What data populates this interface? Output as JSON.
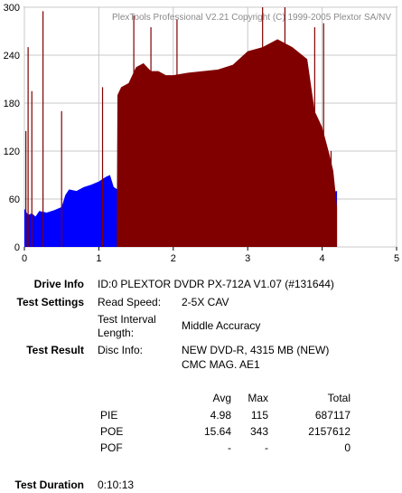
{
  "chart_data": {
    "type": "area",
    "watermark": "PlexTools Professional V2.21 Copyright (C) 1999-2005 Plextor SA/NV",
    "xlim": [
      0,
      5
    ],
    "ylim": [
      0,
      300
    ],
    "x_ticks": [
      "0",
      "1",
      "2",
      "3",
      "4",
      "5"
    ],
    "y_ticks": [
      "0",
      "60",
      "120",
      "180",
      "240",
      "300"
    ],
    "grid": true,
    "series": [
      {
        "color": "#0000ff",
        "x": [
          0.0,
          0.05,
          0.1,
          0.15,
          0.2,
          0.3,
          0.4,
          0.5,
          0.55,
          0.6,
          0.7,
          0.8,
          0.9,
          1.0,
          1.05,
          1.1,
          1.15,
          1.2,
          1.25,
          1.3,
          1.4,
          1.5,
          1.6,
          1.7,
          1.8,
          1.9,
          2.0,
          2.2,
          2.4,
          2.6,
          2.8,
          3.0,
          3.2,
          3.4,
          3.6,
          3.8,
          3.9,
          4.0,
          4.1,
          4.2
        ],
        "values": [
          48,
          40,
          42,
          38,
          45,
          43,
          46,
          50,
          65,
          72,
          70,
          75,
          78,
          82,
          85,
          88,
          90,
          75,
          72,
          75,
          70,
          67,
          60,
          55,
          50,
          47,
          45,
          42,
          40,
          39,
          38,
          37,
          39,
          42,
          46,
          50,
          56,
          62,
          68,
          70
        ]
      },
      {
        "color": "#800000",
        "x": [
          1.24,
          1.25,
          1.3,
          1.4,
          1.5,
          1.6,
          1.7,
          1.8,
          1.9,
          2.0,
          2.2,
          2.4,
          2.6,
          2.8,
          3.0,
          3.2,
          3.3,
          3.4,
          3.6,
          3.8,
          3.9,
          4.0,
          4.1,
          4.15,
          4.2
        ],
        "values": [
          0,
          190,
          200,
          205,
          225,
          230,
          220,
          220,
          215,
          215,
          218,
          220,
          222,
          228,
          245,
          250,
          255,
          260,
          250,
          235,
          170,
          150,
          115,
          95,
          50
        ]
      }
    ],
    "spikes": [
      {
        "x": 0.05,
        "value": 250
      },
      {
        "x": 0.1,
        "value": 195
      },
      {
        "x": 0.25,
        "value": 295
      },
      {
        "x": 0.5,
        "value": 170
      },
      {
        "x": 1.05,
        "value": 200
      },
      {
        "x": 1.47,
        "value": 290
      },
      {
        "x": 1.7,
        "value": 275
      },
      {
        "x": 2.05,
        "value": 285
      },
      {
        "x": 3.2,
        "value": 300
      },
      {
        "x": 3.5,
        "value": 300
      },
      {
        "x": 3.9,
        "value": 275
      },
      {
        "x": 4.02,
        "value": 280
      },
      {
        "x": 4.12,
        "value": 120
      },
      {
        "x": 0.02,
        "value": 145
      }
    ]
  },
  "drive_info": {
    "label": "Drive Info",
    "value": "ID:0 PLEXTOR DVDR PX-712A V1.07 (#131644)"
  },
  "test_settings": {
    "label": "Test Settings",
    "read_speed_label": "Read Speed:",
    "read_speed_value": "2-5X CAV",
    "interval_label_1": "Test Interval",
    "interval_label_2": "Length:",
    "interval_value": "Middle Accuracy"
  },
  "test_result": {
    "label": "Test Result",
    "disc_info_label": "Disc Info:",
    "disc_info_1": "NEW DVD-R, 4315 MB (NEW)",
    "disc_info_2": "CMC MAG. AE1"
  },
  "stats": {
    "headers": {
      "avg": "Avg",
      "max": "Max",
      "total": "Total"
    },
    "rows": [
      {
        "name": "PIE",
        "avg": "4.98",
        "max": "115",
        "total": "687117"
      },
      {
        "name": "POE",
        "avg": "15.64",
        "max": "343",
        "total": "2157612"
      },
      {
        "name": "POF",
        "avg": "-",
        "max": "-",
        "total": "0"
      }
    ]
  },
  "test_duration": {
    "label": "Test Duration",
    "value": "0:10:13"
  }
}
